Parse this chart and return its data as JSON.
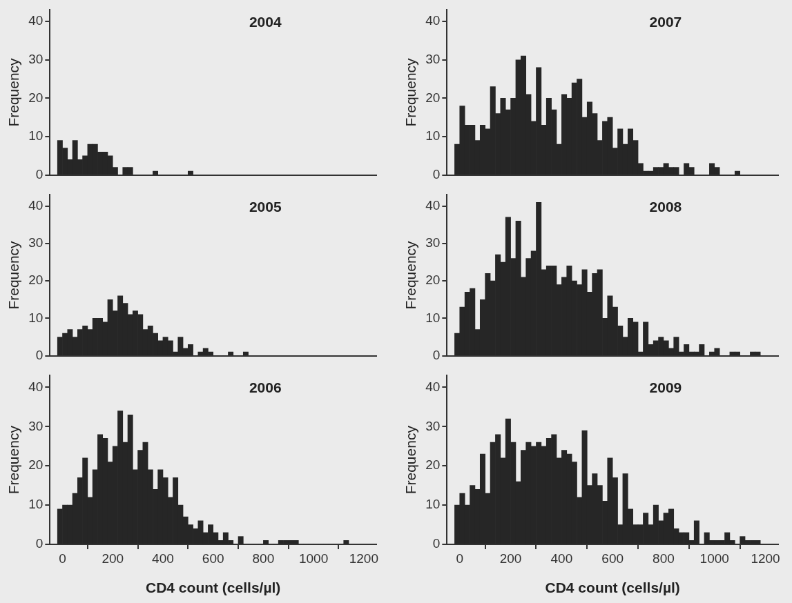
{
  "chart_data": [
    {
      "type": "histogram",
      "title": "2004",
      "ylabel": "Frequency",
      "color": "#262626",
      "tick_labels": "y",
      "xlim": [
        -50,
        1250
      ],
      "xticks": [
        0,
        200,
        400,
        600,
        800,
        1000,
        1200
      ],
      "ylim": [
        0,
        43
      ],
      "yticks": [
        0,
        10,
        20,
        30,
        40
      ],
      "bins": [
        -20,
        0,
        20,
        40,
        60,
        80,
        100,
        120,
        140,
        160,
        180,
        200,
        220,
        240,
        260,
        280,
        300,
        320,
        340,
        360,
        380,
        400,
        420,
        440,
        460,
        480,
        500,
        520
      ],
      "values": [
        9,
        7,
        4,
        9,
        4,
        5,
        8,
        8,
        6,
        6,
        5,
        2,
        0,
        2,
        2,
        0,
        0,
        0,
        0,
        1,
        0,
        0,
        0,
        0,
        0,
        0,
        1
      ]
    },
    {
      "type": "histogram",
      "title": "2007",
      "ylabel": "Frequency",
      "color": "#262626",
      "tick_labels": "y",
      "xlim": [
        -50,
        1250
      ],
      "xticks": [
        0,
        200,
        400,
        600,
        800,
        1000,
        1200
      ],
      "ylim": [
        0,
        43
      ],
      "yticks": [
        0,
        10,
        20,
        30,
        40
      ],
      "bins": [
        -20,
        0,
        20,
        40,
        60,
        80,
        100,
        120,
        140,
        160,
        180,
        200,
        220,
        240,
        260,
        280,
        300,
        320,
        340,
        360,
        380,
        400,
        420,
        440,
        460,
        480,
        500,
        520,
        540,
        560,
        580,
        600,
        620,
        640,
        660,
        680,
        700,
        720,
        740,
        760,
        780,
        800,
        820,
        840,
        860,
        880,
        900,
        920,
        940,
        960,
        980,
        1000,
        1020,
        1040,
        1060,
        1080,
        1100
      ],
      "values": [
        8,
        18,
        13,
        13,
        9,
        13,
        12,
        23,
        16,
        20,
        17,
        20,
        30,
        31,
        21,
        14,
        28,
        13,
        20,
        17,
        8,
        21,
        20,
        24,
        25,
        15,
        19,
        16,
        9,
        14,
        15,
        7,
        12,
        8,
        12,
        9,
        3,
        1,
        1,
        2,
        2,
        3,
        2,
        2,
        0,
        3,
        2,
        0,
        0,
        0,
        3,
        2,
        0,
        0,
        0,
        1
      ]
    },
    {
      "type": "histogram",
      "title": "2005",
      "ylabel": "Frequency",
      "color": "#262626",
      "tick_labels": "y",
      "xlim": [
        -50,
        1250
      ],
      "xticks": [
        0,
        200,
        400,
        600,
        800,
        1000,
        1200
      ],
      "ylim": [
        0,
        43
      ],
      "yticks": [
        0,
        10,
        20,
        30,
        40
      ],
      "bins": [
        -20,
        0,
        20,
        40,
        60,
        80,
        100,
        120,
        140,
        160,
        180,
        200,
        220,
        240,
        260,
        280,
        300,
        320,
        340,
        360,
        380,
        400,
        420,
        440,
        460,
        480,
        500,
        520,
        540,
        560,
        580,
        600,
        620,
        640,
        660,
        680,
        700,
        720,
        740
      ],
      "values": [
        5,
        6,
        7,
        5,
        7,
        8,
        7,
        10,
        10,
        9,
        15,
        12,
        16,
        14,
        11,
        12,
        11,
        7,
        8,
        6,
        4,
        5,
        4,
        1,
        5,
        2,
        3,
        0,
        1,
        2,
        1,
        0,
        0,
        0,
        1,
        0,
        0,
        1
      ]
    },
    {
      "type": "histogram",
      "title": "2008",
      "ylabel": "Frequency",
      "color": "#262626",
      "tick_labels": "y",
      "xlim": [
        -50,
        1250
      ],
      "xticks": [
        0,
        200,
        400,
        600,
        800,
        1000,
        1200
      ],
      "ylim": [
        0,
        43
      ],
      "yticks": [
        0,
        10,
        20,
        30,
        40
      ],
      "bins": [
        -20,
        0,
        20,
        40,
        60,
        80,
        100,
        120,
        140,
        160,
        180,
        200,
        220,
        240,
        260,
        280,
        300,
        320,
        340,
        360,
        380,
        400,
        420,
        440,
        460,
        480,
        500,
        520,
        540,
        560,
        580,
        600,
        620,
        640,
        660,
        680,
        700,
        720,
        740,
        760,
        780,
        800,
        820,
        840,
        860,
        880,
        900,
        920,
        940,
        960,
        980,
        1000,
        1020,
        1040,
        1060,
        1080,
        1100,
        1120,
        1140,
        1160,
        1180
      ],
      "values": [
        6,
        13,
        17,
        18,
        7,
        15,
        22,
        20,
        27,
        25,
        37,
        26,
        36,
        21,
        26,
        28,
        41,
        23,
        24,
        24,
        19,
        21,
        24,
        20,
        19,
        23,
        17,
        22,
        23,
        10,
        16,
        13,
        8,
        5,
        10,
        9,
        1,
        9,
        3,
        4,
        5,
        4,
        2,
        5,
        1,
        3,
        1,
        1,
        3,
        0,
        1,
        2,
        0,
        0,
        1,
        1,
        0,
        0,
        1,
        1
      ]
    },
    {
      "type": "histogram",
      "title": "2006",
      "ylabel": "Frequency",
      "xlabel": "CD4 count (cells/µl)",
      "color": "#262626",
      "xlim": [
        -50,
        1250
      ],
      "xticks": [
        0,
        200,
        400,
        600,
        800,
        1000,
        1200
      ],
      "ylim": [
        0,
        43
      ],
      "yticks": [
        0,
        10,
        20,
        30,
        40
      ],
      "bins": [
        -20,
        0,
        20,
        40,
        60,
        80,
        100,
        120,
        140,
        160,
        180,
        200,
        220,
        240,
        260,
        280,
        300,
        320,
        340,
        360,
        380,
        400,
        420,
        440,
        460,
        480,
        500,
        520,
        540,
        560,
        580,
        600,
        620,
        640,
        660,
        680,
        700,
        720,
        740,
        760,
        780,
        800,
        820,
        840,
        860,
        880,
        900,
        920,
        940,
        960,
        980,
        1000,
        1020,
        1040,
        1060,
        1080,
        1100,
        1120,
        1140
      ],
      "values": [
        9,
        10,
        10,
        13,
        17,
        22,
        12,
        19,
        28,
        27,
        21,
        25,
        34,
        26,
        33,
        19,
        24,
        26,
        19,
        14,
        19,
        17,
        12,
        17,
        10,
        7,
        5,
        4,
        6,
        3,
        5,
        3,
        1,
        3,
        1,
        0,
        2,
        0,
        0,
        0,
        0,
        1,
        0,
        0,
        1,
        1,
        1,
        1,
        0,
        0,
        0,
        0,
        0,
        0,
        0,
        0,
        0,
        1
      ]
    },
    {
      "type": "histogram",
      "title": "2009",
      "ylabel": "Frequency",
      "xlabel": "CD4 count (cells/µl)",
      "color": "#262626",
      "xlim": [
        -50,
        1250
      ],
      "xticks": [
        0,
        200,
        400,
        600,
        800,
        1000,
        1200
      ],
      "ylim": [
        0,
        43
      ],
      "yticks": [
        0,
        10,
        20,
        30,
        40
      ],
      "bins": [
        -20,
        0,
        20,
        40,
        60,
        80,
        100,
        120,
        140,
        160,
        180,
        200,
        220,
        240,
        260,
        280,
        300,
        320,
        340,
        360,
        380,
        400,
        420,
        440,
        460,
        480,
        500,
        520,
        540,
        560,
        580,
        600,
        620,
        640,
        660,
        680,
        700,
        720,
        740,
        760,
        780,
        800,
        820,
        840,
        860,
        880,
        900,
        920,
        940,
        960,
        980,
        1000,
        1020,
        1040,
        1060,
        1080,
        1100,
        1120,
        1140,
        1160,
        1180
      ],
      "values": [
        10,
        13,
        10,
        15,
        14,
        23,
        13,
        26,
        28,
        22,
        32,
        26,
        16,
        24,
        26,
        25,
        26,
        25,
        27,
        28,
        22,
        24,
        23,
        21,
        12,
        29,
        15,
        18,
        15,
        11,
        22,
        17,
        5,
        18,
        9,
        5,
        5,
        8,
        5,
        10,
        6,
        8,
        9,
        4,
        3,
        3,
        1,
        6,
        0,
        3,
        1,
        1,
        1,
        3,
        1,
        0,
        2,
        1,
        1,
        1
      ]
    }
  ]
}
